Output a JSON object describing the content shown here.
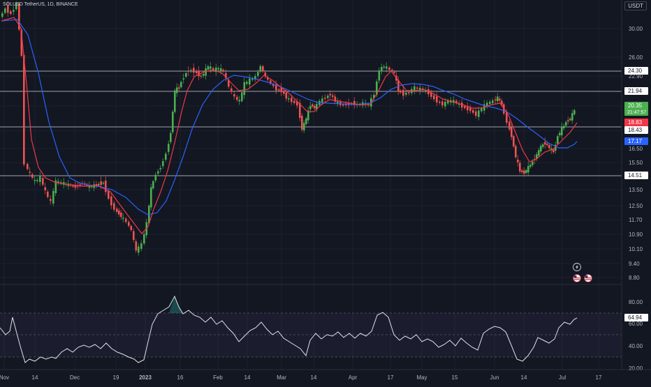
{
  "header": {
    "symbol_line": "SOLUSD TetherUS, 1D, BINANCE",
    "currency": "USDT"
  },
  "price_scale": {
    "ticks": [
      "30.00",
      "26.00",
      "22.90",
      "20.25",
      "18.43",
      "16.50",
      "15.50",
      "13.50",
      "12.50",
      "11.70",
      "10.90",
      "10.10",
      "9.40",
      "8.80"
    ]
  },
  "price_labels": [
    {
      "text": "24.30",
      "kind": "line"
    },
    {
      "text": "21.94",
      "kind": "line"
    },
    {
      "text": "20.35",
      "sub": "21:47:57",
      "kind": "current"
    },
    {
      "text": "18.83",
      "kind": "ma-fast"
    },
    {
      "text": "18.43",
      "kind": "line"
    },
    {
      "text": "17.17",
      "kind": "ma-slow"
    },
    {
      "text": "14.51",
      "kind": "line"
    }
  ],
  "rsi_scale": {
    "ticks": [
      "80.00",
      "60.00",
      "40.00",
      "20.00"
    ],
    "current": "64.94"
  },
  "time_axis": {
    "labels": [
      "Nov",
      "14",
      "Dec",
      "19",
      "2023",
      "16",
      "Feb",
      "14",
      "Mar",
      "14",
      "Apr",
      "17",
      "May",
      "15",
      "Jun",
      "14",
      "Jul",
      "17"
    ]
  },
  "icons": [
    "lightning-icon",
    "us-flag-icon",
    "us-flag-icon"
  ],
  "colors": {
    "background": "#131722",
    "bull": "#26a69a",
    "bull_candle": "#4caf50",
    "bear": "#ef5350",
    "ma_fast": "#f23645",
    "ma_slow": "#2962ff",
    "rsi_line": "#ffffff",
    "rsi_band": "#7e57c2"
  }
}
